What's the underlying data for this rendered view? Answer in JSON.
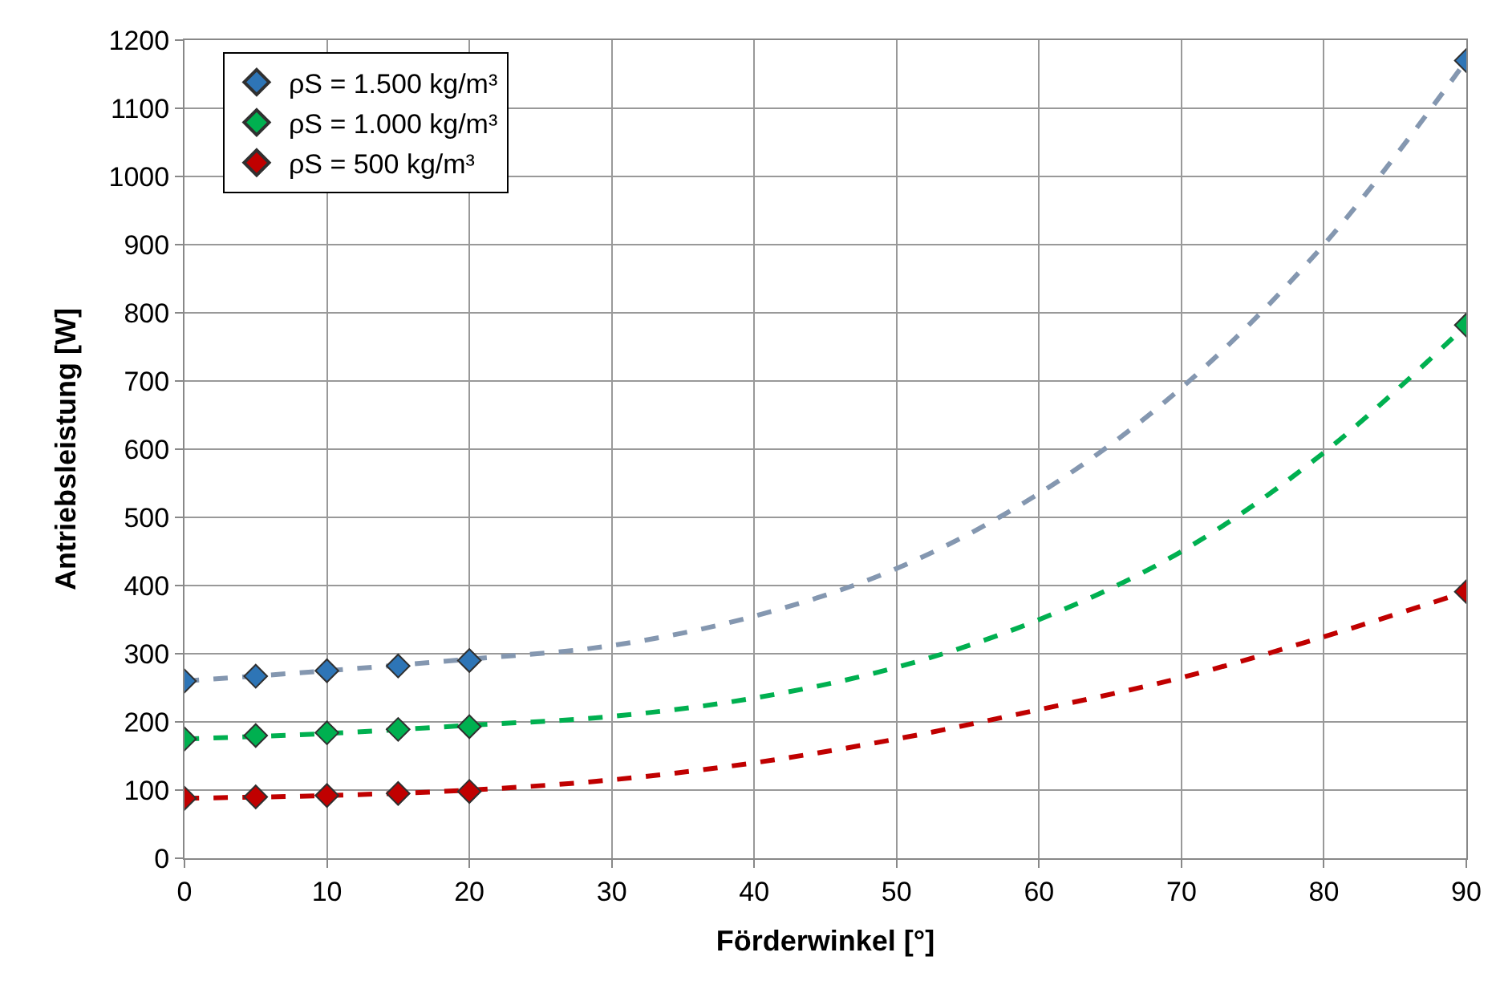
{
  "chart_data": {
    "type": "scatter",
    "xlabel": "Förderwinkel [°]",
    "ylabel": "Antriebsleistung [W]",
    "x": [
      0,
      5,
      10,
      15,
      20,
      90
    ],
    "series": [
      {
        "name": "ρS = 1.500 kg/m³",
        "color": "#2e75b6",
        "values": [
          260,
          267,
          275,
          282,
          290,
          1170
        ],
        "marker": "diamond"
      },
      {
        "name": "ρS = 1.000 kg/m³",
        "color": "#00b050",
        "values": [
          175,
          180,
          184,
          189,
          193,
          782
        ],
        "marker": "diamond"
      },
      {
        "name": "ρS = 500 kg/m³",
        "color": "#c00000",
        "values": [
          88,
          90,
          92,
          95,
          98,
          391
        ],
        "marker": "diamond"
      },
      {
        "type": "line",
        "color": "#8497b0",
        "line_style": "dashed",
        "marker": "none",
        "x": [
          0,
          10,
          20,
          30,
          40,
          50,
          60,
          70,
          80,
          90
        ],
        "values": [
          260,
          275,
          292,
          312,
          355,
          425,
          535,
          690,
          900,
          1170
        ]
      },
      {
        "type": "line",
        "color": "#00b050",
        "line_style": "dashed",
        "marker": "none",
        "x": [
          0,
          10,
          20,
          30,
          40,
          50,
          60,
          70,
          80,
          90
        ],
        "values": [
          175,
          183,
          195,
          208,
          235,
          280,
          350,
          450,
          595,
          782
        ]
      },
      {
        "type": "line",
        "color": "#c00000",
        "line_style": "dashed",
        "marker": "none",
        "x": [
          0,
          10,
          20,
          30,
          40,
          50,
          60,
          70,
          80,
          90
        ],
        "values": [
          88,
          92,
          100,
          115,
          140,
          175,
          218,
          265,
          325,
          391
        ]
      }
    ],
    "xlim": [
      0,
      90
    ],
    "xticks": [
      0,
      10,
      20,
      30,
      40,
      50,
      60,
      70,
      80,
      90
    ],
    "ylim": [
      0,
      1200
    ],
    "yticks": [
      0,
      100,
      200,
      300,
      400,
      500,
      600,
      700,
      800,
      900,
      1000,
      1100,
      1200
    ],
    "grid": true,
    "legend": "top left"
  }
}
